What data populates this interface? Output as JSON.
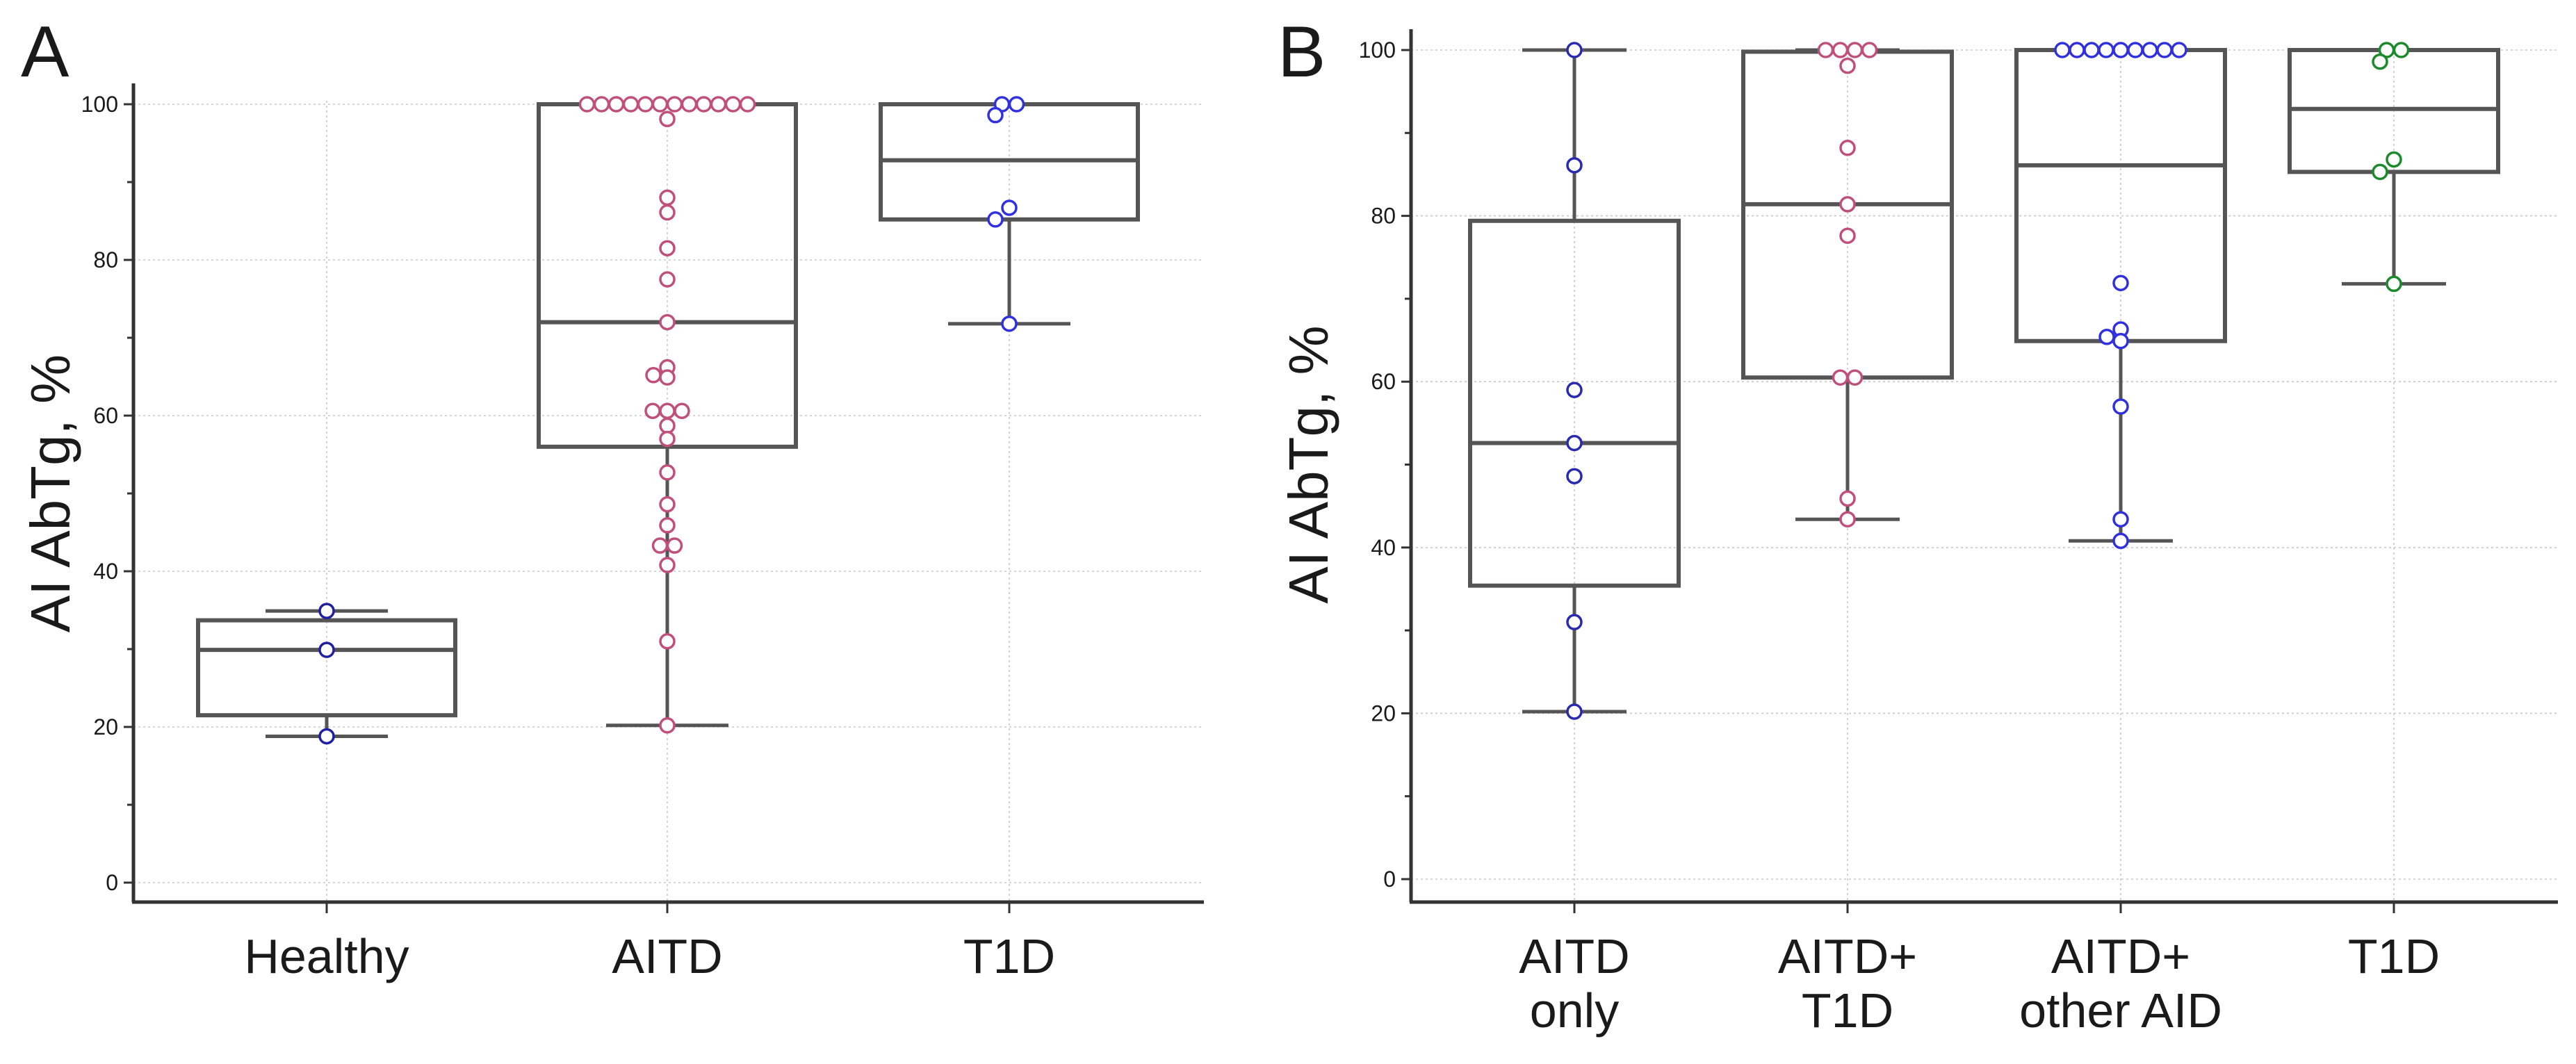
{
  "chart_data": [
    {
      "type": "box",
      "panel": "A",
      "ylabel": "AI AbTg, %",
      "ylim": [
        0,
        100
      ],
      "yticks": [
        0,
        20,
        40,
        60,
        80,
        100
      ],
      "grid": true,
      "categories": [
        {
          "label": "Healthy",
          "lines": [
            "Healthy"
          ],
          "min": 18.8,
          "q1": 21.5,
          "median": 29.9,
          "q3": 33.7,
          "max": 34.9,
          "color": "#2020a0",
          "points": [
            34.9,
            29.9,
            18.8
          ]
        },
        {
          "label": "AITD",
          "lines": [
            "AITD"
          ],
          "min": 20.2,
          "q1": 56.0,
          "median": 72.0,
          "q3": 100,
          "max": 100,
          "color": "#c0507a",
          "points": [
            100,
            100,
            100,
            100,
            100,
            100,
            100,
            100,
            100,
            100,
            100,
            100,
            98.1,
            88.0,
            86.1,
            81.5,
            77.5,
            72.0,
            66.2,
            65.2,
            64.9,
            60.6,
            60.6,
            60.6,
            58.7,
            57.0,
            52.7,
            48.6,
            45.9,
            43.3,
            43.3,
            40.8,
            31.0,
            20.2
          ]
        },
        {
          "label": "T1D",
          "lines": [
            "T1D"
          ],
          "min": 71.8,
          "q1": 85.2,
          "median": 92.8,
          "q3": 100,
          "max": 100,
          "color": "#3030e0",
          "points": [
            100,
            100,
            98.6,
            86.7,
            85.2,
            71.8
          ]
        }
      ]
    },
    {
      "type": "box",
      "panel": "B",
      "ylabel": "AI AbTg, %",
      "ylim": [
        0,
        100
      ],
      "yticks": [
        0,
        20,
        40,
        60,
        80,
        100
      ],
      "grid": true,
      "categories": [
        {
          "label": "AITD only",
          "lines": [
            "AITD",
            "only"
          ],
          "min": 20.2,
          "q1": 35.4,
          "median": 52.6,
          "q3": 79.4,
          "max": 100,
          "color": "#2a2ab0",
          "points": [
            100,
            86.1,
            59.0,
            52.6,
            48.6,
            31.0,
            20.2
          ]
        },
        {
          "label": "AITD+ T1D",
          "lines": [
            "AITD+",
            "T1D"
          ],
          "min": 43.4,
          "q1": 60.5,
          "median": 81.4,
          "q3": 99.8,
          "max": 100,
          "color": "#c0507a",
          "points": [
            100,
            100,
            100,
            100,
            98.1,
            88.2,
            81.4,
            77.6,
            60.5,
            60.5,
            45.9,
            43.4
          ]
        },
        {
          "label": "AITD+ other AID",
          "lines": [
            "AITD+",
            "other AID"
          ],
          "min": 40.8,
          "q1": 64.9,
          "median": 86.1,
          "q3": 100,
          "max": 100,
          "color": "#3030e0",
          "points": [
            100,
            100,
            100,
            100,
            100,
            100,
            100,
            100,
            100,
            71.9,
            66.3,
            65.4,
            64.9,
            57.0,
            43.4,
            40.8
          ]
        },
        {
          "label": "T1D",
          "lines": [
            "T1D"
          ],
          "min": 71.8,
          "q1": 85.3,
          "median": 92.9,
          "q3": 100,
          "max": 100,
          "color": "#1a8a2a",
          "points": [
            100,
            100,
            98.6,
            86.8,
            85.3,
            71.8
          ]
        }
      ]
    }
  ]
}
